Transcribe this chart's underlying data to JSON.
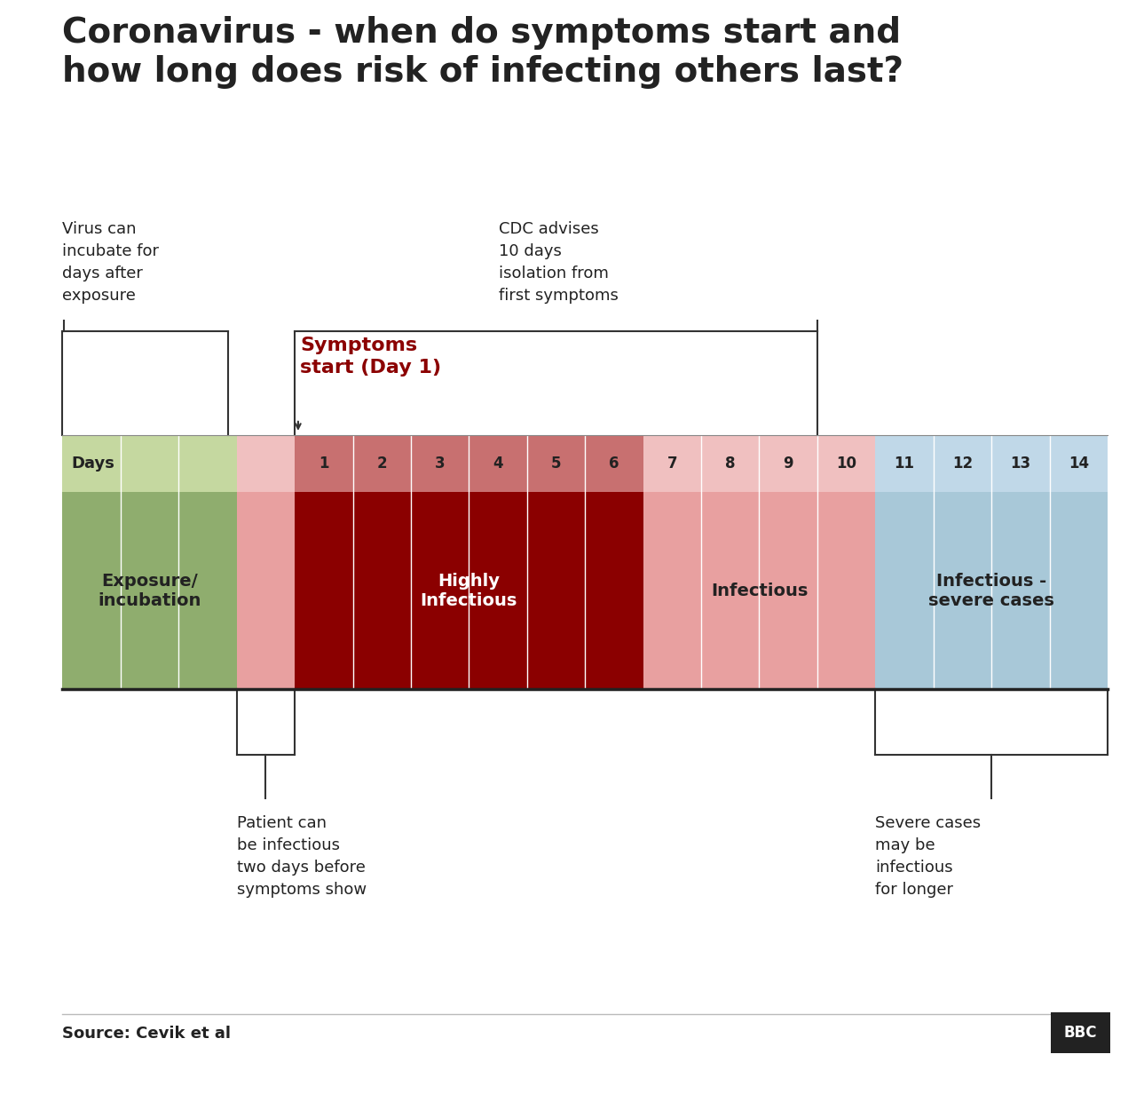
{
  "title": "Coronavirus - when do symptoms start and\nhow long does risk of infecting others last?",
  "title_fontsize": 28,
  "title_color": "#222222",
  "bg_color": "#ffffff",
  "source_text": "Source: Cevik et al",
  "segments": [
    {
      "label": "Exposure/\nincubation",
      "start": 0,
      "end": 3,
      "color": "#8fad6e",
      "text_color": "#222222",
      "day_row_color": "#c5d8a0"
    },
    {
      "label": "",
      "start": 3,
      "end": 4,
      "color": "#e8a0a0",
      "text_color": "#222222",
      "day_row_color": "#f0c0c0"
    },
    {
      "label": "Highly\nInfectious",
      "start": 4,
      "end": 10,
      "color": "#8b0000",
      "text_color": "#ffffff",
      "day_row_color": "#c87070"
    },
    {
      "label": "Infectious",
      "start": 10,
      "end": 14,
      "color": "#e8a0a0",
      "text_color": "#222222",
      "day_row_color": "#f0c0c0"
    },
    {
      "label": "Infectious -\nsevere cases",
      "start": 14,
      "end": 18,
      "color": "#a8c8d8",
      "text_color": "#222222",
      "day_row_color": "#c0d8e8"
    }
  ],
  "total_units": 18,
  "note_top_left": "Virus can\nincubate for\ndays after\nexposure",
  "note_top_right": "CDC advises\n10 days\nisolation from\nfirst symptoms",
  "note_symptoms": "Symptoms\nstart (Day 1)",
  "note_bottom_left": "Patient can\nbe infectious\ntwo days before\nsymptoms show",
  "note_bottom_right": "Severe cases\nmay be\ninfectious\nfor longer",
  "colors": {
    "dark_text": "#222222",
    "red_label": "#8b0000",
    "line": "#333333",
    "source_line": "#bbbbbb"
  }
}
